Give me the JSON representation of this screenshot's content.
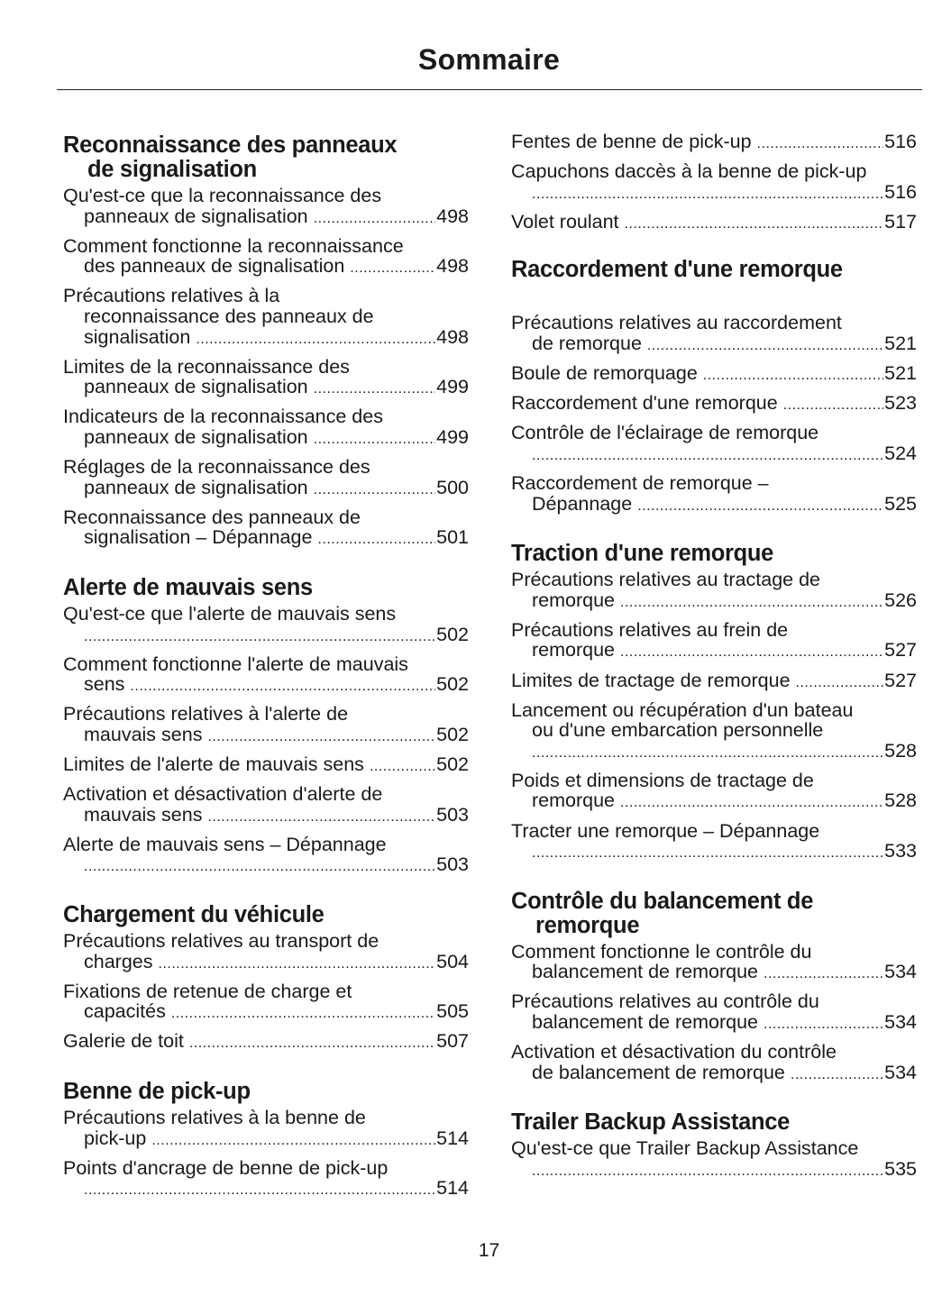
{
  "header": {
    "title": "Sommaire"
  },
  "footer": {
    "page_number": "17"
  },
  "columns": [
    {
      "sections": [
        {
          "heading": [
            "Reconnaissance des panneaux",
            "de signalisation"
          ],
          "entries": [
            {
              "lines": [
                "Qu'est-ce que la reconnaissance des",
                "panneaux de signalisation"
              ],
              "page": "498"
            },
            {
              "lines": [
                "Comment fonctionne la reconnaissance",
                "des panneaux de signalisation"
              ],
              "page": "498"
            },
            {
              "lines": [
                "Précautions relatives à la",
                "reconnaissance des panneaux de",
                "signalisation"
              ],
              "page": "498"
            },
            {
              "lines": [
                "Limites de la reconnaissance des",
                "panneaux de signalisation"
              ],
              "page": "499"
            },
            {
              "lines": [
                "Indicateurs de la reconnaissance des",
                "panneaux de signalisation"
              ],
              "page": "499"
            },
            {
              "lines": [
                "Réglages de la reconnaissance des",
                "panneaux de signalisation"
              ],
              "page": "500"
            },
            {
              "lines": [
                "Reconnaissance des panneaux de",
                "signalisation – Dépannage"
              ],
              "page": "501"
            }
          ]
        },
        {
          "heading": [
            "Alerte de mauvais sens"
          ],
          "entries": [
            {
              "lines": [
                "Qu'est-ce que l'alerte de mauvais sens",
                ""
              ],
              "page": "502"
            },
            {
              "lines": [
                "Comment fonctionne l'alerte de mauvais",
                "sens"
              ],
              "page": "502"
            },
            {
              "lines": [
                "Précautions relatives à l'alerte de",
                "mauvais sens"
              ],
              "page": "502"
            },
            {
              "lines": [
                "Limites de l'alerte de mauvais sens"
              ],
              "page": "502"
            },
            {
              "lines": [
                "Activation et désactivation d'alerte de",
                "mauvais sens"
              ],
              "page": "503"
            },
            {
              "lines": [
                "Alerte de mauvais sens – Dépannage",
                ""
              ],
              "page": "503"
            }
          ]
        },
        {
          "heading": [
            "Chargement du véhicule"
          ],
          "entries": [
            {
              "lines": [
                "Précautions relatives au transport de",
                "charges"
              ],
              "page": "504"
            },
            {
              "lines": [
                "Fixations de retenue de charge et",
                "capacités"
              ],
              "page": "505"
            },
            {
              "lines": [
                "Galerie de toit"
              ],
              "page": "507"
            }
          ]
        },
        {
          "heading": [
            "Benne de pick-up"
          ],
          "entries": [
            {
              "lines": [
                "Précautions relatives à la benne de",
                "pick-up"
              ],
              "page": "514"
            },
            {
              "lines": [
                "Points d'ancrage de benne de pick-up",
                ""
              ],
              "page": "514"
            }
          ]
        }
      ]
    },
    {
      "sections": [
        {
          "heading": [],
          "entries": [
            {
              "lines": [
                "Fentes de benne de pick-up"
              ],
              "page": "516"
            },
            {
              "lines": [
                "Capuchons daccès à la benne de pick-up",
                ""
              ],
              "page": "516"
            },
            {
              "lines": [
                "Volet roulant"
              ],
              "page": "517"
            }
          ]
        },
        {
          "heading": [
            "Raccordement d'une remorque"
          ],
          "spaced": true,
          "entries": [
            {
              "lines": [
                "Précautions relatives au raccordement",
                "de remorque"
              ],
              "page": "521"
            },
            {
              "lines": [
                "Boule de remorquage"
              ],
              "page": "521"
            },
            {
              "lines": [
                "Raccordement d'une remorque"
              ],
              "page": "523"
            },
            {
              "lines": [
                "Contrôle de l'éclairage de remorque",
                ""
              ],
              "page": "524"
            },
            {
              "lines": [
                "Raccordement de remorque –",
                "Dépannage"
              ],
              "page": "525"
            }
          ]
        },
        {
          "heading": [
            "Traction d'une remorque"
          ],
          "entries": [
            {
              "lines": [
                "Précautions relatives au tractage de",
                "remorque"
              ],
              "page": "526"
            },
            {
              "lines": [
                "Précautions relatives au frein de",
                "remorque"
              ],
              "page": "527"
            },
            {
              "lines": [
                "Limites de tractage de remorque"
              ],
              "page": "527"
            },
            {
              "lines": [
                "Lancement ou récupération d'un bateau",
                "ou d'une embarcation personnelle",
                ""
              ],
              "page": "528"
            },
            {
              "lines": [
                "Poids et dimensions de tractage de",
                "remorque"
              ],
              "page": "528"
            },
            {
              "lines": [
                "Tracter une remorque – Dépannage",
                ""
              ],
              "page": "533"
            }
          ]
        },
        {
          "heading": [
            "Contrôle du balancement de",
            "remorque"
          ],
          "entries": [
            {
              "lines": [
                "Comment fonctionne le contrôle du",
                "balancement de remorque"
              ],
              "page": "534"
            },
            {
              "lines": [
                "Précautions relatives au contrôle du",
                "balancement de remorque"
              ],
              "page": "534"
            },
            {
              "lines": [
                "Activation et désactivation du contrôle",
                "de balancement de remorque"
              ],
              "page": "534"
            }
          ]
        },
        {
          "heading": [
            "Trailer Backup Assistance"
          ],
          "entries": [
            {
              "lines": [
                "Qu'est-ce que Trailer Backup Assistance",
                ""
              ],
              "page": "535"
            }
          ]
        }
      ]
    }
  ]
}
